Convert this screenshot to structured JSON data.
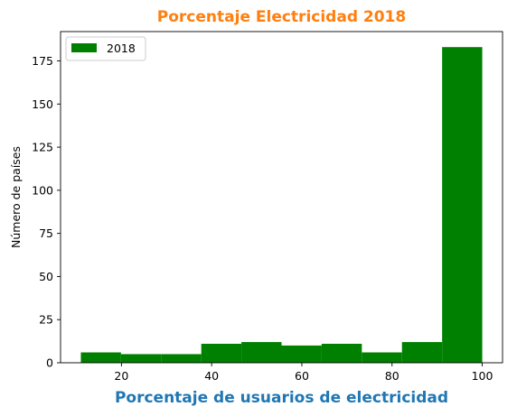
{
  "colors": {
    "title": "#ff7f0e",
    "xlabel": "#1f77b4",
    "bars": "#008000",
    "axes": "#000000",
    "legend_border": "#cccccc"
  },
  "chart_data": {
    "type": "bar",
    "title": "Porcentaje Electricidad 2018",
    "xlabel": "Porcentaje de usuarios de electricidad",
    "ylabel": "Número de países",
    "legend": {
      "position": "top-left",
      "entries": [
        "2018"
      ]
    },
    "grid": false,
    "xlim": [
      6.5,
      104.5
    ],
    "ylim": [
      0,
      192
    ],
    "x_ticks": [
      20,
      40,
      60,
      80,
      100
    ],
    "y_ticks": [
      0,
      25,
      50,
      75,
      100,
      125,
      150,
      175
    ],
    "bin_edges": [
      11,
      19.9,
      28.8,
      37.7,
      46.6,
      55.5,
      64.4,
      73.3,
      82.2,
      91.1,
      100
    ],
    "series": [
      {
        "name": "2018",
        "values": [
          6,
          5,
          5,
          11,
          12,
          10,
          11,
          6,
          12,
          183
        ]
      }
    ]
  }
}
